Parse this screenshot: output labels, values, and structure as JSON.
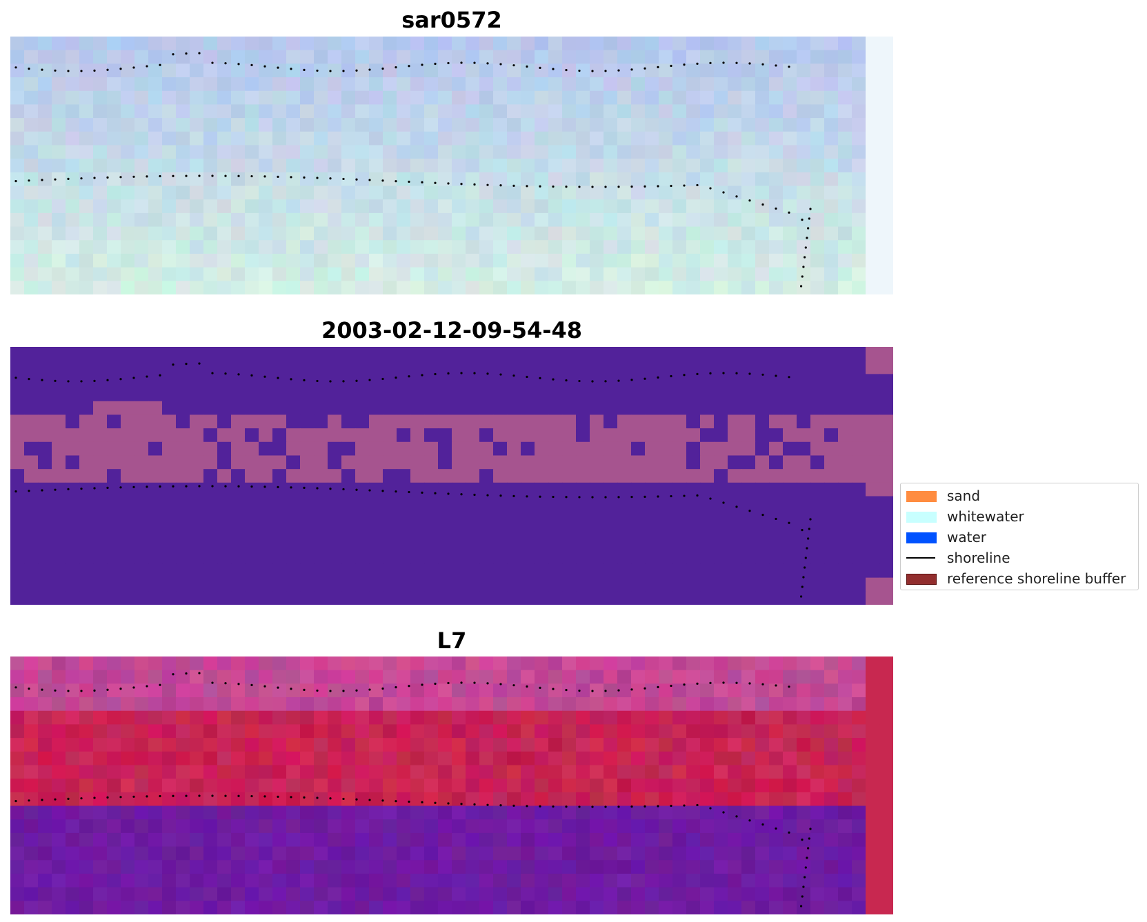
{
  "panels": [
    {
      "title": "sar0572",
      "palette": "rgb"
    },
    {
      "title": "2003-02-12-09-54-48",
      "palette": "classified"
    },
    {
      "title": "L7",
      "palette": "index"
    }
  ],
  "legend": {
    "items": [
      {
        "label": "sand",
        "kind": "patch",
        "color": "#ff8c40"
      },
      {
        "label": "whitewater",
        "kind": "patch",
        "color": "#c8ffff"
      },
      {
        "label": "water",
        "kind": "patch",
        "color": "#0052ff"
      },
      {
        "label": "shoreline",
        "kind": "line",
        "color": "#000000"
      },
      {
        "label": "reference shoreline buffer",
        "kind": "patch",
        "color": "#922e2e"
      }
    ]
  },
  "colors": {
    "classified_water": "#52229a",
    "classified_other": "#a6548f",
    "index_low": "#6a1b9a",
    "index_high": "#c0103a",
    "dots": "#000000"
  }
}
